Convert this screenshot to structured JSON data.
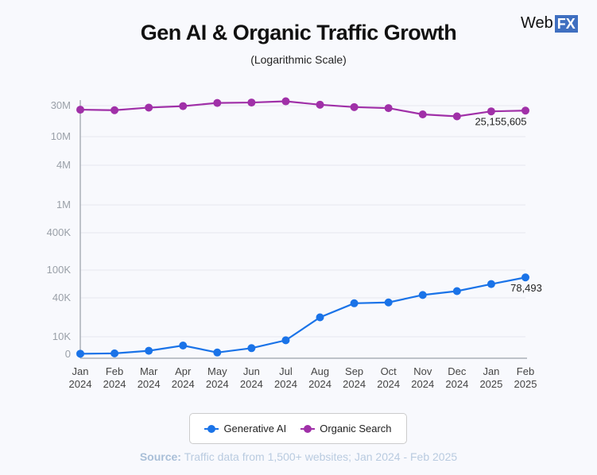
{
  "header": {
    "title": "Gen AI & Organic Traffic Growth",
    "subtitle": "(Logarithmic Scale)",
    "logo_text": "Web",
    "logo_badge": "FX"
  },
  "chart_data": {
    "type": "line",
    "title": "Gen AI & Organic Traffic Growth",
    "subtitle": "(Logarithmic Scale)",
    "y_scale": "logarithmic",
    "categories": [
      [
        "Jan",
        "2024"
      ],
      [
        "Feb",
        "2024"
      ],
      [
        "Mar",
        "2024"
      ],
      [
        "Apr",
        "2024"
      ],
      [
        "May",
        "2024"
      ],
      [
        "Jun",
        "2024"
      ],
      [
        "Jul",
        "2024"
      ],
      [
        "Aug",
        "2024"
      ],
      [
        "Sep",
        "2024"
      ],
      [
        "Oct",
        "2024"
      ],
      [
        "Nov",
        "2024"
      ],
      [
        "Dec",
        "2024"
      ],
      [
        "Jan",
        "2025"
      ],
      [
        "Feb",
        "2025"
      ]
    ],
    "y_ticks": [
      {
        "value": 0,
        "label": "0"
      },
      {
        "value": 10000,
        "label": "10K"
      },
      {
        "value": 40000,
        "label": "40K"
      },
      {
        "value": 100000,
        "label": "100K"
      },
      {
        "value": 400000,
        "label": "400K"
      },
      {
        "value": 1000000,
        "label": "1M"
      },
      {
        "value": 4000000,
        "label": "4M"
      },
      {
        "value": 10000000,
        "label": "10M"
      },
      {
        "value": 30000000,
        "label": "30M"
      }
    ],
    "grid": true,
    "legend_position": "bottom",
    "series": [
      {
        "name": "Generative AI",
        "color": "#1a73e8",
        "values": [
          300,
          500,
          2000,
          5000,
          1000,
          3500,
          8000,
          20000,
          33000,
          34000,
          44000,
          50000,
          63000,
          78493
        ],
        "end_label": "78,493"
      },
      {
        "name": "Organic Search",
        "color": "#a030a8",
        "values": [
          26000000,
          25500000,
          28000000,
          29500000,
          33000000,
          33500000,
          35000000,
          31000000,
          28500000,
          27500000,
          22000000,
          20500000,
          24500000,
          25155605
        ],
        "end_label": "25,155,605"
      }
    ]
  },
  "source": {
    "label": "Source:",
    "text": " Traffic data from 1,500+ websites;  Jan 2024 - Feb 2025"
  }
}
